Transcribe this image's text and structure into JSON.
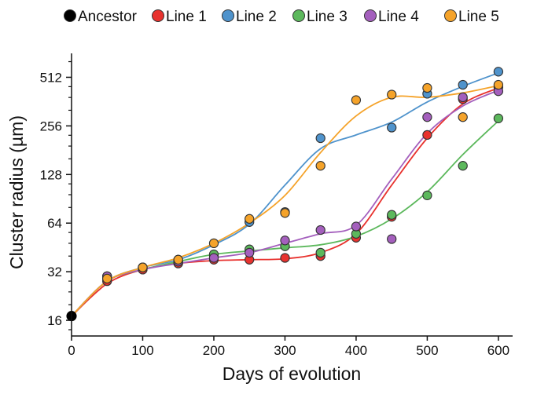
{
  "chart_data": {
    "type": "scatter",
    "title": "",
    "xlabel": "Days of evolution",
    "ylabel": "Cluster radius (µm)",
    "xlim": [
      0,
      620
    ],
    "ylim": [
      12.8,
      720
    ],
    "y_scale": "log2",
    "x_ticks": [
      0,
      100,
      200,
      300,
      400,
      500,
      600
    ],
    "y_ticks": [
      16,
      32,
      64,
      128,
      256,
      512
    ],
    "legend_position": "top",
    "series": [
      {
        "name": "Ancestor",
        "color": "#000000",
        "points": [
          [
            0,
            17
          ]
        ],
        "fit": []
      },
      {
        "name": "Line 1",
        "color": "#e8322e",
        "points": [
          [
            50,
            28
          ],
          [
            100,
            33
          ],
          [
            150,
            36
          ],
          [
            200,
            38
          ],
          [
            250,
            38
          ],
          [
            300,
            39
          ],
          [
            350,
            40
          ],
          [
            400,
            52
          ],
          [
            450,
            70
          ],
          [
            500,
            225
          ],
          [
            550,
            375
          ],
          [
            600,
            445
          ]
        ],
        "fit": [
          [
            0,
            17
          ],
          [
            50,
            27
          ],
          [
            100,
            33
          ],
          [
            150,
            36
          ],
          [
            200,
            37.5
          ],
          [
            250,
            38
          ],
          [
            300,
            38.5
          ],
          [
            350,
            42
          ],
          [
            400,
            55
          ],
          [
            450,
            110
          ],
          [
            500,
            215
          ],
          [
            550,
            350
          ],
          [
            600,
            440
          ]
        ]
      },
      {
        "name": "Line 2",
        "color": "#4f93cc",
        "points": [
          [
            50,
            30
          ],
          [
            100,
            34
          ],
          [
            150,
            37
          ],
          [
            200,
            40
          ],
          [
            250,
            65
          ],
          [
            300,
            75
          ],
          [
            350,
            215
          ],
          [
            450,
            250
          ],
          [
            500,
            405
          ],
          [
            550,
            460
          ],
          [
            600,
            555
          ]
        ],
        "fit": [
          [
            0,
            17
          ],
          [
            50,
            28
          ],
          [
            100,
            34
          ],
          [
            150,
            38
          ],
          [
            200,
            47
          ],
          [
            250,
            63
          ],
          [
            300,
            110
          ],
          [
            350,
            185
          ],
          [
            400,
            225
          ],
          [
            450,
            270
          ],
          [
            500,
            360
          ],
          [
            550,
            450
          ],
          [
            600,
            545
          ]
        ]
      },
      {
        "name": "Line 3",
        "color": "#5cb85c",
        "points": [
          [
            50,
            29
          ],
          [
            100,
            34
          ],
          [
            150,
            38
          ],
          [
            200,
            41
          ],
          [
            250,
            44
          ],
          [
            300,
            46
          ],
          [
            350,
            42
          ],
          [
            400,
            55
          ],
          [
            450,
            72
          ],
          [
            500,
            95
          ],
          [
            550,
            145
          ],
          [
            600,
            285
          ]
        ],
        "fit": [
          [
            0,
            17
          ],
          [
            50,
            28
          ],
          [
            100,
            33
          ],
          [
            150,
            37
          ],
          [
            200,
            41
          ],
          [
            250,
            43
          ],
          [
            300,
            45
          ],
          [
            350,
            47
          ],
          [
            400,
            53
          ],
          [
            450,
            68
          ],
          [
            500,
            100
          ],
          [
            550,
            170
          ],
          [
            600,
            275
          ]
        ]
      },
      {
        "name": "Line 4",
        "color": "#a45fbd",
        "points": [
          [
            50,
            30
          ],
          [
            100,
            34
          ],
          [
            150,
            37
          ],
          [
            200,
            39
          ],
          [
            250,
            42
          ],
          [
            300,
            50
          ],
          [
            350,
            58
          ],
          [
            400,
            61
          ],
          [
            450,
            51
          ],
          [
            500,
            290
          ],
          [
            550,
            385
          ],
          [
            600,
            420
          ]
        ],
        "fit": [
          [
            0,
            17
          ],
          [
            50,
            28
          ],
          [
            100,
            33
          ],
          [
            150,
            36
          ],
          [
            200,
            39
          ],
          [
            250,
            42
          ],
          [
            300,
            48
          ],
          [
            350,
            55
          ],
          [
            400,
            62
          ],
          [
            450,
            120
          ],
          [
            500,
            230
          ],
          [
            550,
            340
          ],
          [
            600,
            425
          ]
        ]
      },
      {
        "name": "Line 5",
        "color": "#f5a32a",
        "points": [
          [
            50,
            29
          ],
          [
            100,
            34
          ],
          [
            150,
            38
          ],
          [
            200,
            48
          ],
          [
            250,
            68
          ],
          [
            300,
            74
          ],
          [
            350,
            145
          ],
          [
            400,
            370
          ],
          [
            450,
            400
          ],
          [
            500,
            440
          ],
          [
            550,
            290
          ],
          [
            600,
            460
          ]
        ],
        "fit": [
          [
            0,
            17
          ],
          [
            50,
            28
          ],
          [
            100,
            34
          ],
          [
            150,
            39
          ],
          [
            200,
            48
          ],
          [
            250,
            64
          ],
          [
            300,
            95
          ],
          [
            350,
            175
          ],
          [
            400,
            295
          ],
          [
            450,
            385
          ],
          [
            500,
            385
          ],
          [
            550,
            410
          ],
          [
            600,
            455
          ]
        ]
      }
    ]
  }
}
